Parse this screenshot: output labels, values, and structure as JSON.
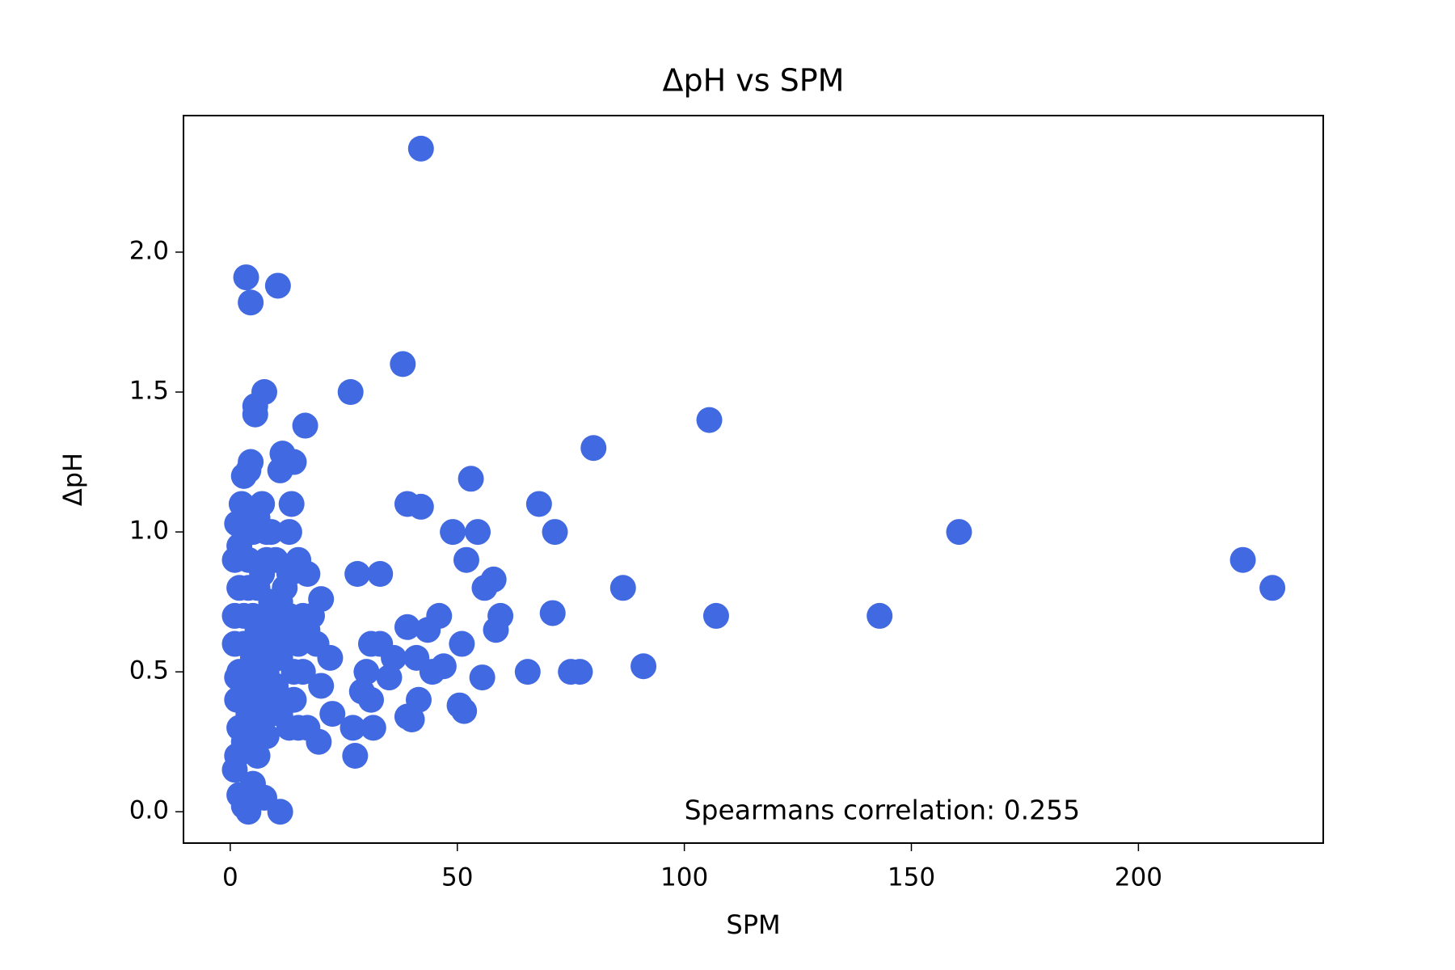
{
  "chart_data": {
    "type": "scatter",
    "title": "ΔpH vs SPM",
    "x_label": "SPM",
    "y_label": "ΔpH",
    "annotation": "Spearmans correlation: 0.255",
    "color": "#4169e1",
    "x": [
      42,
      3.5,
      10.5,
      4.5,
      38,
      26.5,
      7.5,
      5.5,
      5.5,
      16.5,
      105.5,
      80,
      11.5,
      4.5,
      14,
      11,
      3,
      53,
      4,
      68,
      39,
      42,
      13.5,
      7,
      2.5,
      1.5,
      49,
      54.5,
      71.5,
      160.5,
      13,
      52,
      223,
      229.5,
      15,
      1,
      28,
      33,
      58,
      56,
      86.5,
      17,
      20,
      59.5,
      71,
      107,
      143,
      46,
      58.5,
      39,
      43.5,
      51,
      31,
      33,
      19,
      1,
      22,
      36,
      41,
      65.5,
      75,
      77,
      91,
      47,
      44.5,
      55.5,
      30,
      35,
      20,
      29,
      31,
      41.5,
      50.5,
      51.5,
      22.5,
      39,
      40,
      27,
      31.5,
      19.5,
      27.5,
      17,
      13,
      8,
      6,
      1.5,
      1,
      2,
      7.5,
      3,
      4,
      11,
      5,
      2,
      3,
      4,
      5,
      6,
      7,
      8,
      9,
      10,
      11,
      12,
      13,
      14,
      15,
      2,
      3,
      4,
      5,
      6,
      7,
      8,
      9,
      10,
      12,
      14,
      16,
      17,
      18,
      2,
      1.5,
      1,
      1.5,
      3,
      4,
      5,
      6,
      7,
      8,
      9,
      10,
      3,
      4,
      6,
      8,
      2,
      5,
      9,
      11,
      13,
      15,
      3,
      6,
      11,
      14,
      16,
      12
    ],
    "values": [
      2.37,
      1.91,
      1.88,
      1.82,
      1.6,
      1.5,
      1.5,
      1.45,
      1.42,
      1.38,
      1.4,
      1.3,
      1.28,
      1.25,
      1.25,
      1.22,
      1.2,
      1.19,
      1.22,
      1.1,
      1.1,
      1.09,
      1.1,
      1.1,
      1.1,
      1.03,
      1.0,
      1.0,
      1.0,
      1.0,
      1.0,
      0.9,
      0.9,
      0.8,
      0.9,
      0.9,
      0.85,
      0.85,
      0.83,
      0.8,
      0.8,
      0.85,
      0.76,
      0.7,
      0.71,
      0.7,
      0.7,
      0.7,
      0.65,
      0.66,
      0.65,
      0.6,
      0.6,
      0.6,
      0.6,
      0.6,
      0.55,
      0.55,
      0.55,
      0.5,
      0.5,
      0.5,
      0.52,
      0.52,
      0.5,
      0.48,
      0.5,
      0.48,
      0.45,
      0.43,
      0.4,
      0.4,
      0.38,
      0.36,
      0.35,
      0.34,
      0.33,
      0.3,
      0.3,
      0.25,
      0.2,
      0.3,
      0.3,
      0.27,
      0.2,
      0.2,
      0.15,
      0.06,
      0.05,
      0.02,
      0.0,
      0.0,
      0.1,
      0.8,
      0.7,
      0.9,
      1.0,
      0.8,
      0.6,
      0.9,
      0.75,
      0.65,
      0.55,
      0.8,
      0.7,
      0.5,
      0.6,
      0.5,
      0.4,
      0.35,
      0.55,
      0.45,
      0.4,
      0.5,
      0.35,
      0.45,
      0.4,
      0.4,
      0.7,
      0.65,
      0.7,
      0.3,
      0.4,
      0.7,
      0.48,
      0.6,
      0.5,
      0.7,
      0.65,
      0.85,
      0.7,
      1.0,
      0.9,
      1.0,
      0.8,
      1.05,
      1.0,
      0.95,
      0.3,
      0.55,
      0.75,
      0.85,
      0.3,
      0.25,
      0.35,
      0.35,
      0.65,
      0.5,
      0.6
    ],
    "xlim": [
      -10.3,
      240.7
    ],
    "ylim": [
      -0.112,
      2.488
    ],
    "xticks": [
      0,
      50,
      100,
      150,
      200
    ],
    "yticks": [
      {
        "value": 0,
        "label": "0.0"
      },
      {
        "value": 0.5,
        "label": "0.5"
      },
      {
        "value": 1,
        "label": "1.0"
      },
      {
        "value": 1.5,
        "label": "1.5"
      },
      {
        "value": 2,
        "label": "2.0"
      }
    ],
    "grid": false
  }
}
